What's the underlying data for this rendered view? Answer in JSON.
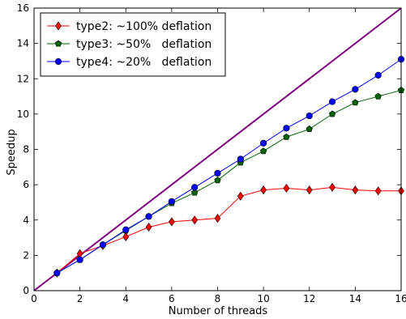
{
  "chart_data": {
    "type": "line",
    "title": "",
    "xlabel": "Number of threads",
    "ylabel": "Speedup",
    "xlim": [
      0,
      16
    ],
    "ylim": [
      0,
      16
    ],
    "xticks": [
      0,
      2,
      4,
      6,
      8,
      10,
      12,
      14,
      16
    ],
    "yticks": [
      0,
      2,
      4,
      6,
      8,
      10,
      12,
      14,
      16
    ],
    "grid": false,
    "legend_position": "top-left",
    "reference_line": {
      "x": [
        0,
        16
      ],
      "y": [
        0,
        16
      ],
      "color": "#800080"
    },
    "series": [
      {
        "name": "type2: ~100% deflation",
        "color": "#ff0000",
        "marker": "diamond",
        "x": [
          1,
          2,
          3,
          4,
          5,
          6,
          7,
          8,
          9,
          10,
          11,
          12,
          13,
          14,
          15,
          16
        ],
        "y": [
          1.0,
          2.1,
          2.55,
          3.05,
          3.6,
          3.9,
          4.0,
          4.1,
          5.35,
          5.7,
          5.8,
          5.7,
          5.85,
          5.7,
          5.65,
          5.65
        ]
      },
      {
        "name": "type3: ~50%   deflation",
        "color": "#006400",
        "marker": "pentagon",
        "x": [
          1,
          2,
          3,
          4,
          5,
          6,
          7,
          8,
          9,
          10,
          11,
          12,
          13,
          14,
          15,
          16
        ],
        "y": [
          1.0,
          1.75,
          2.6,
          3.4,
          4.2,
          4.95,
          5.55,
          6.25,
          7.25,
          7.9,
          8.7,
          9.15,
          10.0,
          10.65,
          11.0,
          11.35
        ]
      },
      {
        "name": "type4: ~20%   deflation",
        "color": "#0000ff",
        "marker": "circle",
        "x": [
          1,
          2,
          3,
          4,
          5,
          6,
          7,
          8,
          9,
          10,
          11,
          12,
          13,
          14,
          15,
          16
        ],
        "y": [
          1.0,
          1.75,
          2.6,
          3.45,
          4.2,
          5.05,
          5.85,
          6.65,
          7.45,
          8.35,
          9.2,
          9.9,
          10.7,
          11.4,
          12.2,
          13.1
        ]
      }
    ]
  }
}
